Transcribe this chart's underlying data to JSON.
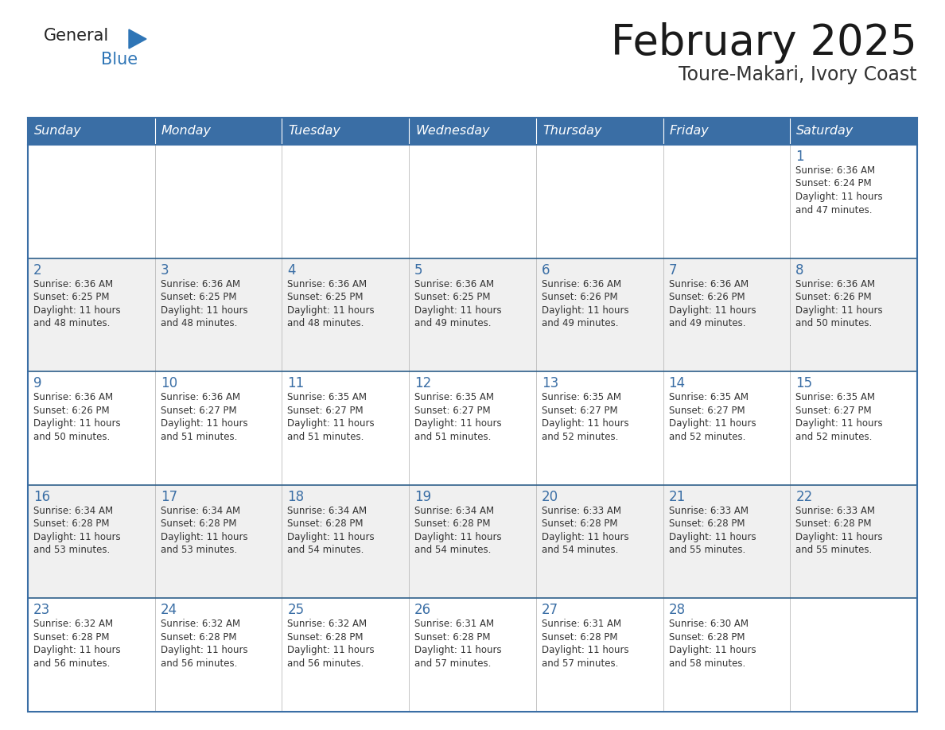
{
  "title": "February 2025",
  "subtitle": "Toure-Makari, Ivory Coast",
  "header_bg_color": "#3A6EA5",
  "header_text_color": "#FFFFFF",
  "cell_bg_even": "#FFFFFF",
  "cell_bg_odd": "#F0F0F0",
  "border_color_header": "#3A6EA5",
  "border_color_row": "#3A6EA5",
  "inner_border_color": "#C0C0C0",
  "day_names": [
    "Sunday",
    "Monday",
    "Tuesday",
    "Wednesday",
    "Thursday",
    "Friday",
    "Saturday"
  ],
  "title_color": "#1A1A1A",
  "subtitle_color": "#333333",
  "day_num_color": "#3A6EA5",
  "cell_text_color": "#333333",
  "logo_general_color": "#222222",
  "logo_blue_color": "#2E75B6",
  "days": [
    {
      "date": 1,
      "row": 0,
      "col": 6,
      "sunrise": "6:36 AM",
      "sunset": "6:24 PM",
      "daylight_hours": 11,
      "daylight_minutes": 47
    },
    {
      "date": 2,
      "row": 1,
      "col": 0,
      "sunrise": "6:36 AM",
      "sunset": "6:25 PM",
      "daylight_hours": 11,
      "daylight_minutes": 48
    },
    {
      "date": 3,
      "row": 1,
      "col": 1,
      "sunrise": "6:36 AM",
      "sunset": "6:25 PM",
      "daylight_hours": 11,
      "daylight_minutes": 48
    },
    {
      "date": 4,
      "row": 1,
      "col": 2,
      "sunrise": "6:36 AM",
      "sunset": "6:25 PM",
      "daylight_hours": 11,
      "daylight_minutes": 48
    },
    {
      "date": 5,
      "row": 1,
      "col": 3,
      "sunrise": "6:36 AM",
      "sunset": "6:25 PM",
      "daylight_hours": 11,
      "daylight_minutes": 49
    },
    {
      "date": 6,
      "row": 1,
      "col": 4,
      "sunrise": "6:36 AM",
      "sunset": "6:26 PM",
      "daylight_hours": 11,
      "daylight_minutes": 49
    },
    {
      "date": 7,
      "row": 1,
      "col": 5,
      "sunrise": "6:36 AM",
      "sunset": "6:26 PM",
      "daylight_hours": 11,
      "daylight_minutes": 49
    },
    {
      "date": 8,
      "row": 1,
      "col": 6,
      "sunrise": "6:36 AM",
      "sunset": "6:26 PM",
      "daylight_hours": 11,
      "daylight_minutes": 50
    },
    {
      "date": 9,
      "row": 2,
      "col": 0,
      "sunrise": "6:36 AM",
      "sunset": "6:26 PM",
      "daylight_hours": 11,
      "daylight_minutes": 50
    },
    {
      "date": 10,
      "row": 2,
      "col": 1,
      "sunrise": "6:36 AM",
      "sunset": "6:27 PM",
      "daylight_hours": 11,
      "daylight_minutes": 51
    },
    {
      "date": 11,
      "row": 2,
      "col": 2,
      "sunrise": "6:35 AM",
      "sunset": "6:27 PM",
      "daylight_hours": 11,
      "daylight_minutes": 51
    },
    {
      "date": 12,
      "row": 2,
      "col": 3,
      "sunrise": "6:35 AM",
      "sunset": "6:27 PM",
      "daylight_hours": 11,
      "daylight_minutes": 51
    },
    {
      "date": 13,
      "row": 2,
      "col": 4,
      "sunrise": "6:35 AM",
      "sunset": "6:27 PM",
      "daylight_hours": 11,
      "daylight_minutes": 52
    },
    {
      "date": 14,
      "row": 2,
      "col": 5,
      "sunrise": "6:35 AM",
      "sunset": "6:27 PM",
      "daylight_hours": 11,
      "daylight_minutes": 52
    },
    {
      "date": 15,
      "row": 2,
      "col": 6,
      "sunrise": "6:35 AM",
      "sunset": "6:27 PM",
      "daylight_hours": 11,
      "daylight_minutes": 52
    },
    {
      "date": 16,
      "row": 3,
      "col": 0,
      "sunrise": "6:34 AM",
      "sunset": "6:28 PM",
      "daylight_hours": 11,
      "daylight_minutes": 53
    },
    {
      "date": 17,
      "row": 3,
      "col": 1,
      "sunrise": "6:34 AM",
      "sunset": "6:28 PM",
      "daylight_hours": 11,
      "daylight_minutes": 53
    },
    {
      "date": 18,
      "row": 3,
      "col": 2,
      "sunrise": "6:34 AM",
      "sunset": "6:28 PM",
      "daylight_hours": 11,
      "daylight_minutes": 54
    },
    {
      "date": 19,
      "row": 3,
      "col": 3,
      "sunrise": "6:34 AM",
      "sunset": "6:28 PM",
      "daylight_hours": 11,
      "daylight_minutes": 54
    },
    {
      "date": 20,
      "row": 3,
      "col": 4,
      "sunrise": "6:33 AM",
      "sunset": "6:28 PM",
      "daylight_hours": 11,
      "daylight_minutes": 54
    },
    {
      "date": 21,
      "row": 3,
      "col": 5,
      "sunrise": "6:33 AM",
      "sunset": "6:28 PM",
      "daylight_hours": 11,
      "daylight_minutes": 55
    },
    {
      "date": 22,
      "row": 3,
      "col": 6,
      "sunrise": "6:33 AM",
      "sunset": "6:28 PM",
      "daylight_hours": 11,
      "daylight_minutes": 55
    },
    {
      "date": 23,
      "row": 4,
      "col": 0,
      "sunrise": "6:32 AM",
      "sunset": "6:28 PM",
      "daylight_hours": 11,
      "daylight_minutes": 56
    },
    {
      "date": 24,
      "row": 4,
      "col": 1,
      "sunrise": "6:32 AM",
      "sunset": "6:28 PM",
      "daylight_hours": 11,
      "daylight_minutes": 56
    },
    {
      "date": 25,
      "row": 4,
      "col": 2,
      "sunrise": "6:32 AM",
      "sunset": "6:28 PM",
      "daylight_hours": 11,
      "daylight_minutes": 56
    },
    {
      "date": 26,
      "row": 4,
      "col": 3,
      "sunrise": "6:31 AM",
      "sunset": "6:28 PM",
      "daylight_hours": 11,
      "daylight_minutes": 57
    },
    {
      "date": 27,
      "row": 4,
      "col": 4,
      "sunrise": "6:31 AM",
      "sunset": "6:28 PM",
      "daylight_hours": 11,
      "daylight_minutes": 57
    },
    {
      "date": 28,
      "row": 4,
      "col": 5,
      "sunrise": "6:30 AM",
      "sunset": "6:28 PM",
      "daylight_hours": 11,
      "daylight_minutes": 58
    }
  ]
}
